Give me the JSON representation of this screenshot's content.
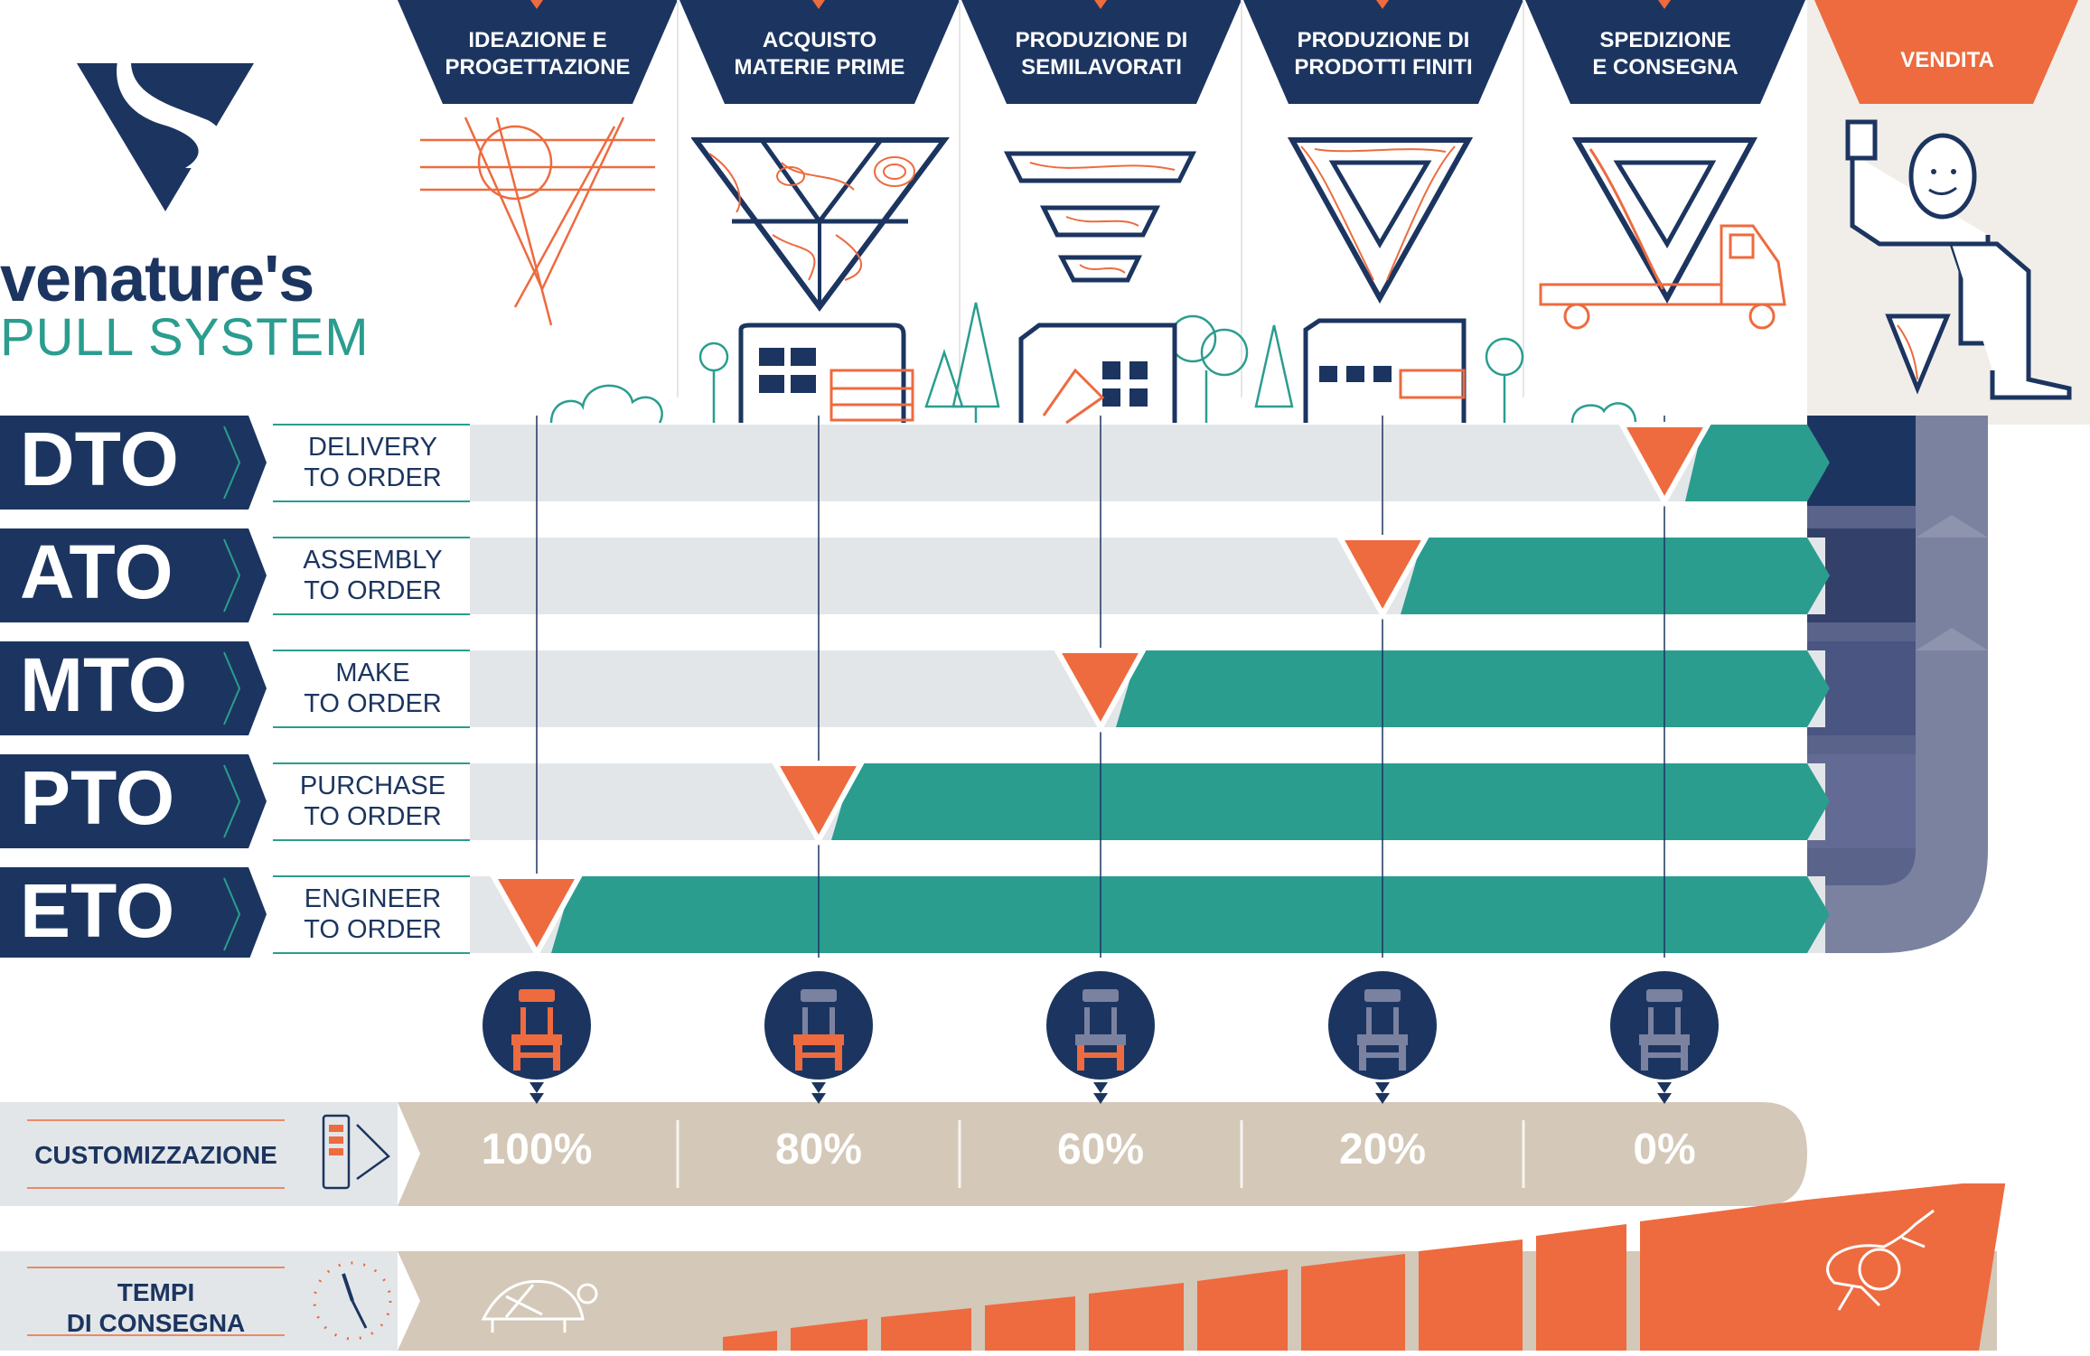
{
  "brand": {
    "name": "venature's",
    "subtitle": "PULL SYSTEM"
  },
  "stages": [
    {
      "label": "IDEAZIONE E\nPROGETTAZIONE"
    },
    {
      "label": "ACQUISTO\nMATERIE PRIME"
    },
    {
      "label": "PRODUZIONE DI\nSEMILAVORATI"
    },
    {
      "label": "PRODUZIONE DI\nPRODOTTI FINITI"
    },
    {
      "label": "SPEDIZIONE\nE CONSEGNA"
    },
    {
      "label": "VENDITA"
    }
  ],
  "systems": [
    {
      "code": "DTO",
      "line1": "DELIVERY",
      "line2": "TO ORDER"
    },
    {
      "code": "ATO",
      "line1": "ASSEMBLY",
      "line2": "TO ORDER"
    },
    {
      "code": "MTO",
      "line1": "MAKE",
      "line2": "TO ORDER"
    },
    {
      "code": "PTO",
      "line1": "PURCHASE",
      "line2": "TO ORDER"
    },
    {
      "code": "ETO",
      "line1": "ENGINEER",
      "line2": "TO ORDER"
    }
  ],
  "customization": {
    "label": "CUSTOMIZZAZIONE",
    "values": [
      "100%",
      "80%",
      "60%",
      "20%",
      "0%"
    ]
  },
  "delivery_times": {
    "label_line1": "TEMPI",
    "label_line2": "DI CONSEGNA"
  },
  "colors": {
    "navy": "#1c3560",
    "teal": "#2a9d8f",
    "orange": "#ed6b3f",
    "light_gray": "#e3e6e9",
    "beige": "#d4c8b8",
    "slate": "#7b82a0"
  },
  "icons": [
    "venatures-logo-icon",
    "chair-icon",
    "tablet-icon",
    "clock-icon",
    "turtle-icon",
    "rabbit-icon",
    "truck-icon",
    "factory-icon",
    "tree-icon",
    "customer-thumbs-up-icon"
  ]
}
